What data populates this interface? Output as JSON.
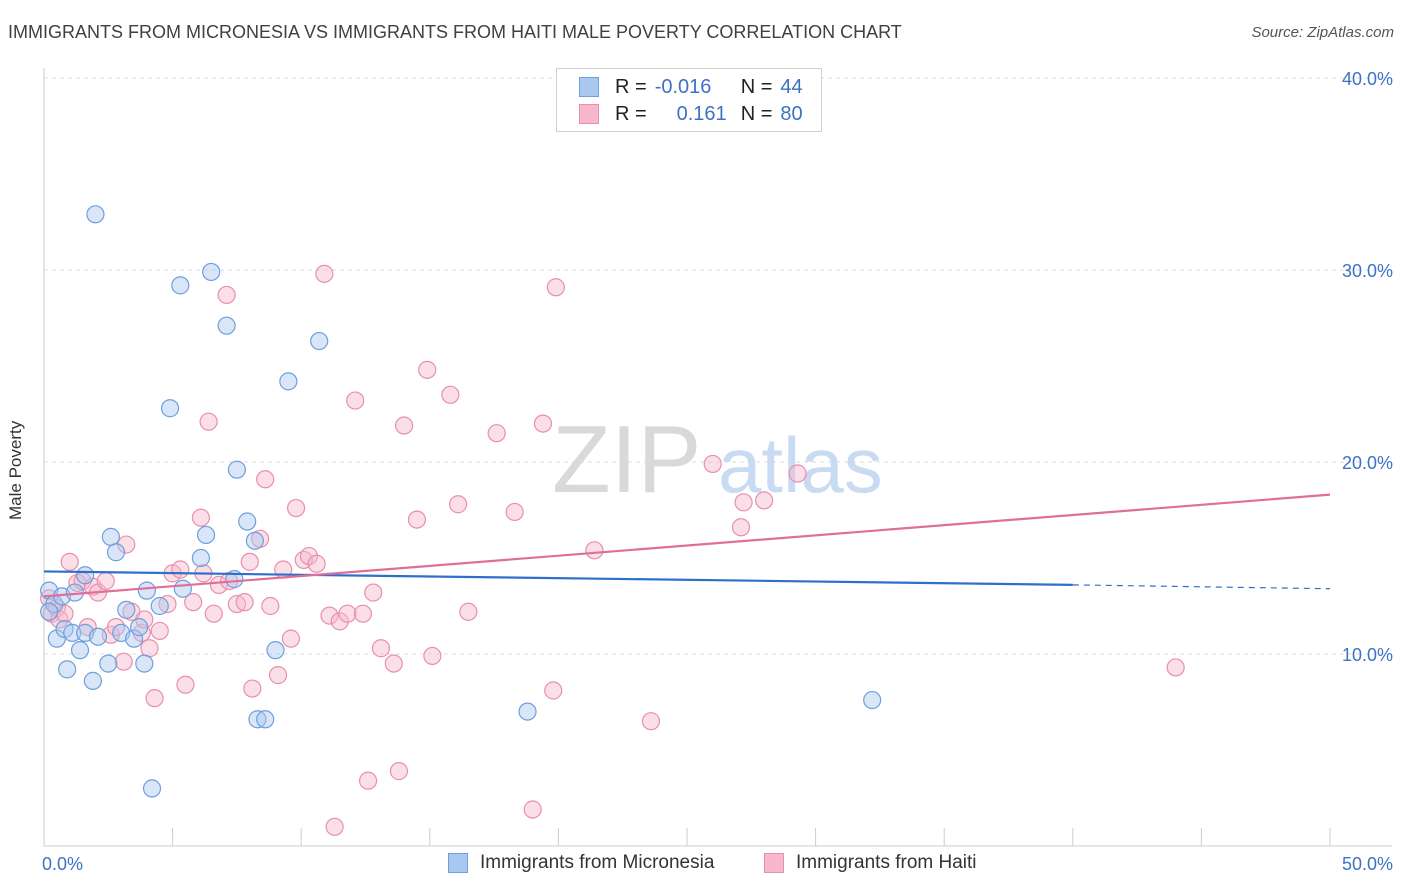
{
  "header": {
    "title": "IMMIGRANTS FROM MICRONESIA VS IMMIGRANTS FROM HAITI MALE POVERTY CORRELATION CHART",
    "source": "Source: ZipAtlas.com"
  },
  "watermark": {
    "zip": "ZIP",
    "atlas": "atlas"
  },
  "legend_stats": {
    "r_label": "R =",
    "n_label": "N =",
    "micronesia": {
      "r": "-0.016",
      "n": "44"
    },
    "haiti": {
      "r": "0.161",
      "n": "80"
    }
  },
  "colors": {
    "micronesia_fill": "#a9c8f0",
    "micronesia_stroke": "#6f9fdc",
    "micronesia_line": "#2f6fcc",
    "haiti_fill": "#f7b8cc",
    "haiti_stroke": "#e88fad",
    "haiti_line": "#e06f98",
    "tick_label": "#3c72c4"
  },
  "chart_data": {
    "type": "scatter",
    "title": "IMMIGRANTS FROM MICRONESIA VS IMMIGRANTS FROM HAITI MALE POVERTY CORRELATION CHART",
    "xlabel": "",
    "ylabel": "Male Poverty",
    "xlim": [
      0,
      50
    ],
    "ylim": [
      0,
      40
    ],
    "x_tick_labels": [
      "0.0%",
      "50.0%"
    ],
    "y_tick_labels": [
      "10.0%",
      "20.0%",
      "30.0%",
      "40.0%"
    ],
    "y_ticks": [
      10,
      20,
      30,
      40
    ],
    "grid": true,
    "legend_position": "bottom",
    "series": [
      {
        "name": "Immigrants from Micronesia",
        "trend": {
          "x": [
            0,
            40
          ],
          "y": [
            14.3,
            13.6
          ],
          "dashed_to": [
            50,
            13.4
          ]
        },
        "points": [
          [
            0.2,
            13.3
          ],
          [
            0.4,
            12.6
          ],
          [
            0.5,
            10.8
          ],
          [
            0.7,
            13.0
          ],
          [
            0.8,
            11.3
          ],
          [
            0.9,
            9.2
          ],
          [
            1.1,
            11.1
          ],
          [
            1.2,
            13.2
          ],
          [
            1.4,
            10.2
          ],
          [
            1.6,
            14.1
          ],
          [
            1.6,
            11.1
          ],
          [
            1.9,
            8.6
          ],
          [
            2.0,
            32.9
          ],
          [
            2.1,
            10.9
          ],
          [
            2.5,
            9.5
          ],
          [
            2.6,
            16.1
          ],
          [
            2.8,
            15.3
          ],
          [
            3.0,
            11.1
          ],
          [
            3.2,
            12.3
          ],
          [
            3.5,
            10.8
          ],
          [
            3.7,
            11.4
          ],
          [
            3.9,
            9.5
          ],
          [
            4.0,
            13.3
          ],
          [
            4.2,
            3.0
          ],
          [
            4.5,
            12.5
          ],
          [
            4.9,
            22.8
          ],
          [
            5.3,
            29.2
          ],
          [
            5.4,
            13.4
          ],
          [
            6.1,
            15.0
          ],
          [
            6.3,
            16.2
          ],
          [
            6.5,
            29.9
          ],
          [
            7.1,
            27.1
          ],
          [
            7.4,
            13.9
          ],
          [
            7.5,
            19.6
          ],
          [
            7.9,
            16.9
          ],
          [
            8.2,
            15.9
          ],
          [
            8.3,
            6.6
          ],
          [
            8.6,
            6.6
          ],
          [
            9.0,
            10.2
          ],
          [
            9.5,
            24.2
          ],
          [
            10.7,
            26.3
          ],
          [
            18.8,
            7.0
          ],
          [
            32.2,
            7.6
          ],
          [
            0.2,
            12.2
          ]
        ]
      },
      {
        "name": "Immigrants from Haiti",
        "trend": {
          "x": [
            0,
            50
          ],
          "y": [
            13.0,
            18.3
          ]
        },
        "points": [
          [
            0.2,
            12.9
          ],
          [
            0.3,
            12.1
          ],
          [
            0.5,
            12.4
          ],
          [
            0.6,
            11.8
          ],
          [
            0.8,
            12.1
          ],
          [
            1.0,
            14.8
          ],
          [
            1.3,
            13.7
          ],
          [
            1.5,
            13.8
          ],
          [
            1.7,
            11.4
          ],
          [
            1.9,
            13.5
          ],
          [
            2.1,
            13.2
          ],
          [
            2.4,
            13.8
          ],
          [
            2.6,
            11.0
          ],
          [
            2.8,
            11.4
          ],
          [
            3.1,
            9.6
          ],
          [
            3.2,
            15.7
          ],
          [
            3.4,
            12.2
          ],
          [
            3.8,
            11.1
          ],
          [
            3.9,
            11.8
          ],
          [
            4.1,
            10.3
          ],
          [
            4.3,
            7.7
          ],
          [
            4.5,
            11.2
          ],
          [
            4.8,
            12.6
          ],
          [
            5.0,
            14.2
          ],
          [
            5.3,
            14.4
          ],
          [
            5.5,
            8.4
          ],
          [
            5.8,
            12.7
          ],
          [
            6.1,
            17.1
          ],
          [
            6.2,
            14.2
          ],
          [
            6.4,
            22.1
          ],
          [
            6.6,
            12.1
          ],
          [
            6.8,
            13.6
          ],
          [
            7.1,
            28.7
          ],
          [
            7.2,
            13.8
          ],
          [
            7.5,
            12.6
          ],
          [
            7.8,
            12.7
          ],
          [
            8.0,
            14.8
          ],
          [
            8.1,
            8.2
          ],
          [
            8.4,
            16.0
          ],
          [
            8.6,
            19.1
          ],
          [
            8.8,
            12.5
          ],
          [
            9.1,
            8.9
          ],
          [
            9.3,
            14.4
          ],
          [
            9.6,
            10.8
          ],
          [
            9.8,
            17.6
          ],
          [
            10.1,
            14.9
          ],
          [
            10.3,
            15.1
          ],
          [
            10.6,
            14.7
          ],
          [
            10.9,
            29.8
          ],
          [
            11.1,
            12.0
          ],
          [
            11.3,
            1.0
          ],
          [
            11.5,
            11.7
          ],
          [
            11.8,
            12.1
          ],
          [
            12.1,
            23.2
          ],
          [
            12.4,
            12.1
          ],
          [
            12.6,
            3.4
          ],
          [
            12.8,
            13.2
          ],
          [
            13.1,
            10.3
          ],
          [
            13.6,
            9.5
          ],
          [
            13.8,
            3.9
          ],
          [
            14.0,
            21.9
          ],
          [
            14.5,
            17.0
          ],
          [
            14.9,
            24.8
          ],
          [
            15.1,
            9.9
          ],
          [
            15.8,
            23.5
          ],
          [
            16.1,
            17.8
          ],
          [
            16.5,
            12.2
          ],
          [
            17.6,
            21.5
          ],
          [
            18.3,
            17.4
          ],
          [
            19.0,
            1.9
          ],
          [
            19.4,
            22.0
          ],
          [
            19.8,
            8.1
          ],
          [
            19.9,
            29.1
          ],
          [
            21.4,
            15.4
          ],
          [
            23.6,
            6.5
          ],
          [
            26.0,
            19.9
          ],
          [
            27.1,
            16.6
          ],
          [
            27.2,
            17.9
          ],
          [
            28.0,
            18.0
          ],
          [
            29.3,
            19.4
          ],
          [
            44.0,
            9.3
          ]
        ]
      }
    ]
  },
  "bottom_legend": {
    "micronesia_label": "Immigrants from Micronesia",
    "haiti_label": "Immigrants from Haiti"
  }
}
